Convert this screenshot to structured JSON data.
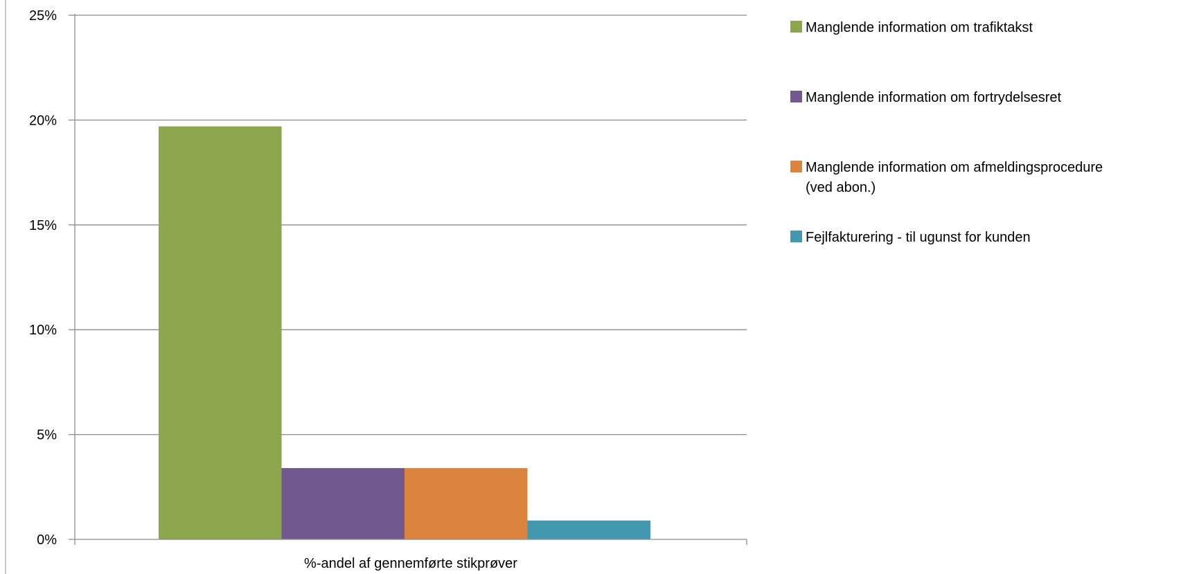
{
  "chart_data": {
    "type": "bar",
    "categories": [
      "%-andel af gennemførte stikprøver"
    ],
    "series": [
      {
        "name": "Manglende information om trafiktakst",
        "values": [
          0.197
        ],
        "color": "#8ba64d"
      },
      {
        "name": "Manglende information om fortrydelsesret",
        "values": [
          0.034
        ],
        "color": "#71588f"
      },
      {
        "name": [
          "Manglende information om afmeldingsprocedure",
          "(ved abon.)"
        ],
        "values": [
          0.034
        ],
        "color": "#db843d"
      },
      {
        "name": "Fejlfakturering - til ugunst for kunden",
        "values": [
          0.009
        ],
        "color": "#4198af"
      }
    ],
    "ylim": [
      0,
      0.25
    ],
    "yticks": [
      0,
      0.05,
      0.1,
      0.15,
      0.2,
      0.25
    ],
    "ytick_labels": [
      "0%",
      "5%",
      "10%",
      "15%",
      "20%",
      "25%"
    ],
    "grid": true,
    "legend": "right",
    "title": "",
    "xlabel": "",
    "ylabel": ""
  }
}
